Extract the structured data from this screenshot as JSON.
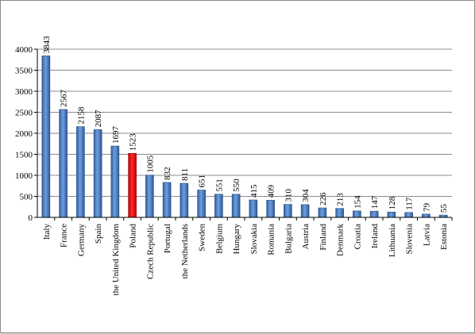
{
  "chart_data": {
    "type": "bar",
    "title": "",
    "xlabel": "",
    "ylabel": "",
    "ylim": [
      0,
      4000
    ],
    "yticks": [
      0,
      500,
      1000,
      1500,
      2000,
      2500,
      3000,
      3500,
      4000
    ],
    "grid": true,
    "legend": "none",
    "bar_color": "#4f81bd",
    "highlight_color": "#ff0000",
    "highlight_category": "Poland",
    "categories": [
      "Italy",
      "France",
      "Germany",
      "Spain",
      "the United Kingdom",
      "Poland",
      "Czech Republic",
      "Portugal",
      "the Netherlands",
      "Sweden",
      "Belgium",
      "Hungary",
      "Slovakia",
      "Romania",
      "Bulgaria",
      "Austria",
      "Finland",
      "Denmark",
      "Croatia",
      "Ireland",
      "Lithuania",
      "Slovenia",
      "Latvia",
      "Estonia"
    ],
    "values": [
      3843,
      2567,
      2158,
      2087,
      1697,
      1523,
      1005,
      832,
      811,
      651,
      551,
      550,
      415,
      409,
      310,
      304,
      226,
      213,
      154,
      147,
      128,
      117,
      79,
      55
    ]
  }
}
